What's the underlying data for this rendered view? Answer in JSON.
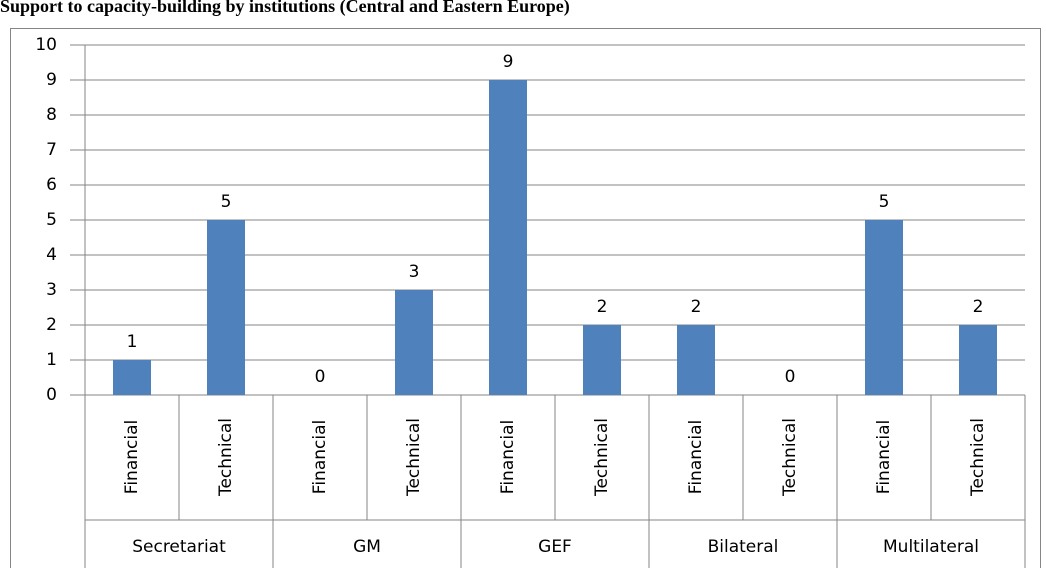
{
  "chart_data": {
    "type": "bar",
    "title": "Support to capacity-building by institutions (Central and Eastern Europe)",
    "categories": [
      "Financial",
      "Technical",
      "Financial",
      "Technical",
      "Financial",
      "Technical",
      "Financial",
      "Technical",
      "Financial",
      "Technical"
    ],
    "groups": [
      "Secretariat",
      "GM",
      "GEF",
      "Bilateral",
      "Multilateral"
    ],
    "values": [
      1,
      5,
      0,
      3,
      9,
      2,
      2,
      0,
      5,
      2
    ],
    "color": "#4f81bd",
    "ylim": [
      0,
      10
    ],
    "yticks": [
      0,
      1,
      2,
      3,
      4,
      5,
      6,
      7,
      8,
      9,
      10
    ],
    "grid": true
  }
}
